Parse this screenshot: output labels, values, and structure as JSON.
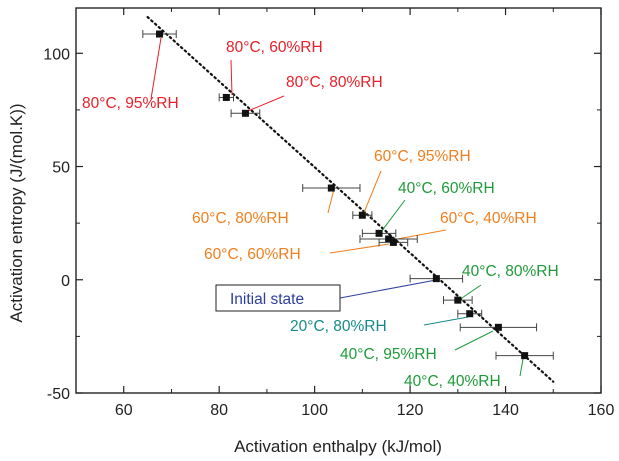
{
  "chart_data": {
    "type": "scatter",
    "title": "",
    "xlabel": "Activation enthalpy (kJ/mol)",
    "ylabel": "Activation entropy (J/(mol.K))",
    "xlim": [
      50,
      160
    ],
    "ylim": [
      -50,
      120
    ],
    "xticks": [
      60,
      80,
      100,
      120,
      140,
      160
    ],
    "yticks": [
      -50,
      0,
      50,
      100
    ],
    "grid": false,
    "series": [
      {
        "points": [
          {
            "x": 67.5,
            "y": 108.5,
            "xerr": 3.5
          },
          {
            "x": 81.5,
            "y": 80.5,
            "xerr": 1.5
          },
          {
            "x": 85.5,
            "y": 73.5,
            "xerr": 3.0
          },
          {
            "x": 103.5,
            "y": 40.5,
            "xerr": 6.0
          },
          {
            "x": 110.0,
            "y": 28.5,
            "xerr": 2.0
          },
          {
            "x": 113.5,
            "y": 20.5,
            "xerr": 3.5
          },
          {
            "x": 115.5,
            "y": 18.0,
            "xerr": 6.0
          },
          {
            "x": 116.5,
            "y": 16.5,
            "xerr": 3.0
          },
          {
            "x": 125.5,
            "y": 0.5,
            "xerr": 5.5
          },
          {
            "x": 130.0,
            "y": -9.0,
            "xerr": 3.0
          },
          {
            "x": 132.5,
            "y": -15.0,
            "xerr": 2.5
          },
          {
            "x": 138.5,
            "y": -21.0,
            "xerr": 8.0
          },
          {
            "x": 144.0,
            "y": -33.5,
            "xerr": 6.0
          }
        ]
      }
    ],
    "trendline": {
      "style": "dotted",
      "x": [
        65,
        150
      ],
      "y": [
        116,
        -45
      ]
    },
    "annotations": [
      {
        "text": "80°C, 60%RH",
        "color": "#e8202a"
      },
      {
        "text": "80°C, 80%RH",
        "color": "#e8202a"
      },
      {
        "text": "80°C, 95%RH",
        "color": "#e8202a"
      },
      {
        "text": "60°C, 95%RH",
        "color": "#f07f1e"
      },
      {
        "text": "40°C, 60%RH",
        "color": "#1e9a3a"
      },
      {
        "text": "60°C, 80%RH",
        "color": "#f07f1e"
      },
      {
        "text": "60°C, 40%RH",
        "color": "#f07f1e"
      },
      {
        "text": "60°C, 60%RH",
        "color": "#f07f1e"
      },
      {
        "text": "40°C, 80%RH",
        "color": "#1e9a3a"
      },
      {
        "text": "Initial state",
        "color": "#2e3f9c",
        "boxed": true
      },
      {
        "text": "20°C, 80%RH",
        "color": "#168a8a"
      },
      {
        "text": "40°C, 95%RH",
        "color": "#1e9a3a"
      },
      {
        "text": "40°C, 40%RH",
        "color": "#1e9a3a"
      }
    ],
    "colors": {
      "axis": "#222222",
      "marker": "#111111",
      "errorbar": "#444444",
      "trendline": "#111111"
    }
  }
}
